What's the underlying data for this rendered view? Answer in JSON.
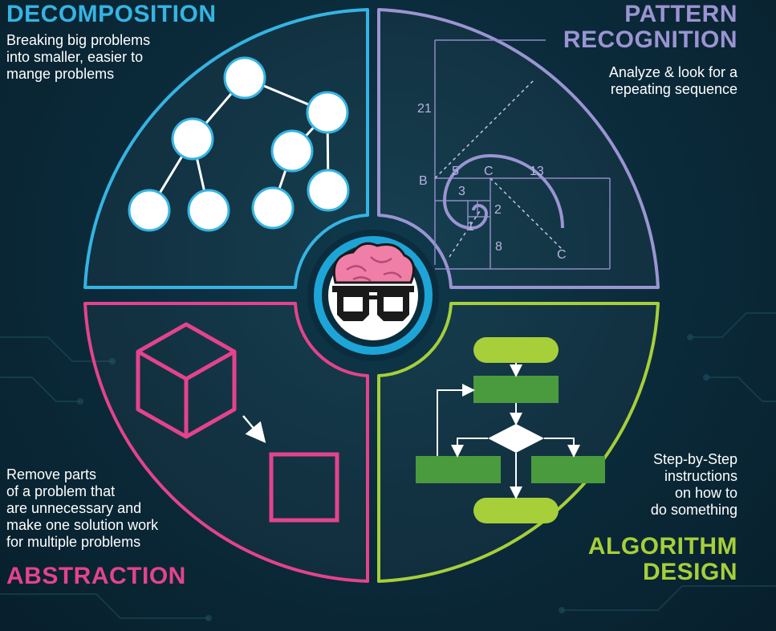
{
  "quadrants": {
    "decomposition": {
      "title": "DECOMPOSITION",
      "desc": [
        "Breaking big problems",
        "into smaller, easier to",
        "mange problems"
      ],
      "color": "#35b4e3"
    },
    "pattern": {
      "title": [
        "PATTERN",
        "RECOGNITION"
      ],
      "desc": [
        "Analyze & look for a",
        "repeating sequence"
      ],
      "color": "#9b94d2"
    },
    "abstraction": {
      "title": "ABSTRACTION",
      "desc": [
        "Remove parts",
        "of a problem that",
        "are unnecessary and",
        "make one solution work",
        "for multiple problems"
      ],
      "color": "#e4438d"
    },
    "algorithm": {
      "title": [
        "ALGORITHM",
        "DESIGN"
      ],
      "desc": [
        "Step-by-Step",
        "instructions",
        "on how to",
        "do something"
      ],
      "color": "#a6cf3a"
    }
  },
  "spiral_labels": {
    "n21": "21",
    "b": "B",
    "n5": "5",
    "c1": "C",
    "n13": "13",
    "n3": "3",
    "n2": "2",
    "n1": "1",
    "n8": "8",
    "c2": "C"
  },
  "center_icon": "brain-with-glasses-icon",
  "colors": {
    "background": "#0b2c3c",
    "flow_light": "#a6cf3a",
    "flow_dark": "#4a9a3e",
    "center_ring": "#1ea5d8"
  }
}
